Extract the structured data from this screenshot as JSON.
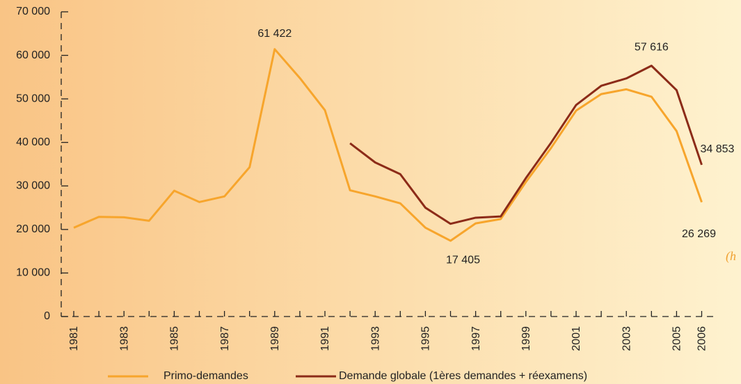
{
  "chart_data": {
    "type": "line",
    "categories": [
      "1981",
      null,
      "1983",
      null,
      "1985",
      null,
      "1987",
      null,
      "1989",
      null,
      "1991",
      null,
      "1993",
      null,
      "1995",
      null,
      "1997",
      null,
      "1999",
      null,
      "2001",
      null,
      "2003",
      null,
      "2005",
      "2006"
    ],
    "series": [
      {
        "name": "Primo-demandes",
        "color": "#f7a52c",
        "values": [
          20400,
          22900,
          22800,
          22000,
          28900,
          26300,
          27600,
          34300,
          61422,
          54800,
          47400,
          29000,
          27600,
          26000,
          20400,
          17405,
          21400,
          22400,
          30900,
          38700,
          47300,
          51100,
          52200,
          50500,
          42600,
          26269
        ],
        "value_labels": [
          null,
          null,
          null,
          null,
          null,
          null,
          null,
          null,
          "61 422",
          null,
          null,
          null,
          null,
          null,
          null,
          "17 405",
          null,
          null,
          null,
          null,
          null,
          null,
          null,
          null,
          null,
          "26 269"
        ]
      },
      {
        "name": "Demande globale (1ères demandes + réexamens)",
        "color": "#8c2b18",
        "values": [
          null,
          null,
          null,
          null,
          null,
          null,
          null,
          null,
          null,
          null,
          null,
          39800,
          35400,
          32700,
          25000,
          21300,
          22700,
          23000,
          31800,
          39900,
          48600,
          53000,
          54700,
          57616,
          52000,
          34853
        ],
        "value_labels": [
          null,
          null,
          null,
          null,
          null,
          null,
          null,
          null,
          null,
          null,
          null,
          null,
          null,
          null,
          null,
          null,
          null,
          null,
          null,
          null,
          null,
          null,
          null,
          "57 616",
          null,
          "34 853"
        ]
      }
    ],
    "ylim": [
      0,
      70000
    ],
    "yticks": [
      0,
      {
        "value": 10000,
        "label": "10 000"
      },
      {
        "value": 20000,
        "label": "20 000"
      },
      {
        "value": 30000,
        "label": "30 000"
      },
      {
        "value": 40000,
        "label": "40 000"
      },
      {
        "value": 50000,
        "label": "50 000"
      },
      {
        "value": 60000,
        "label": "60 000"
      },
      {
        "value": 70000,
        "label": "70 000"
      }
    ],
    "annotations": [
      "(h"
    ]
  }
}
